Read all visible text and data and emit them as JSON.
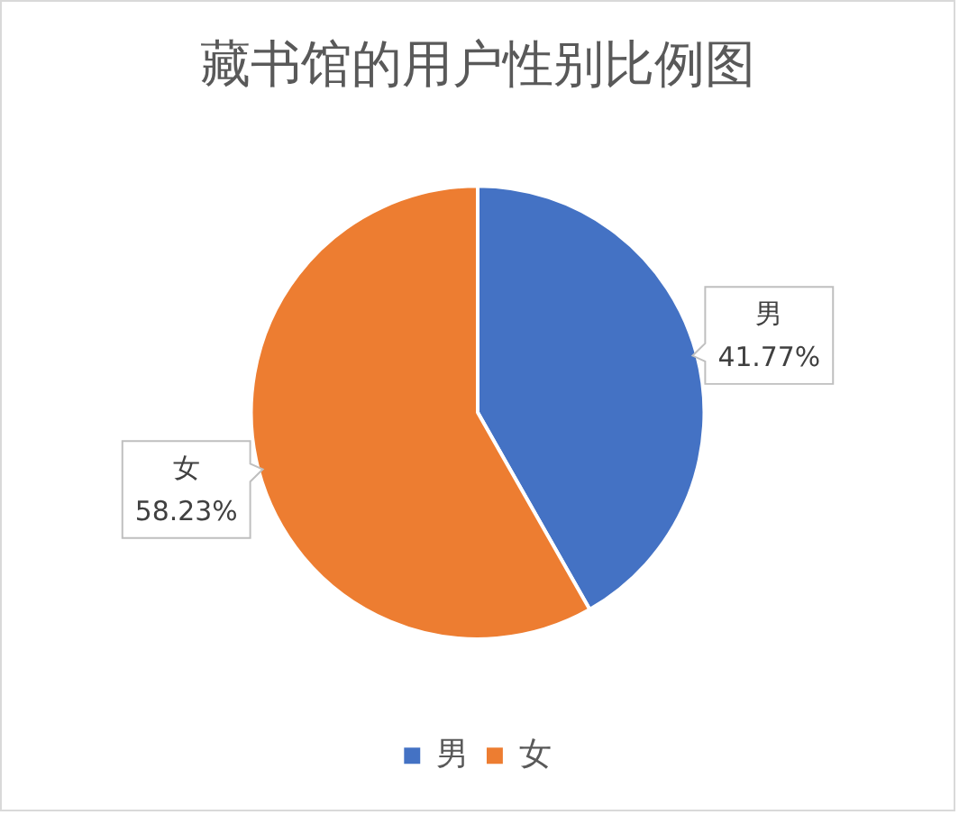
{
  "chart_data": {
    "type": "pie",
    "title": "藏书馆的用户性别比例图",
    "categories": [
      "男",
      "女"
    ],
    "values": [
      41.77,
      58.23
    ],
    "colors": [
      "#4472c4",
      "#ed7d31"
    ],
    "value_labels": [
      "41.77%",
      "58.23%"
    ],
    "legend": "bottom"
  }
}
